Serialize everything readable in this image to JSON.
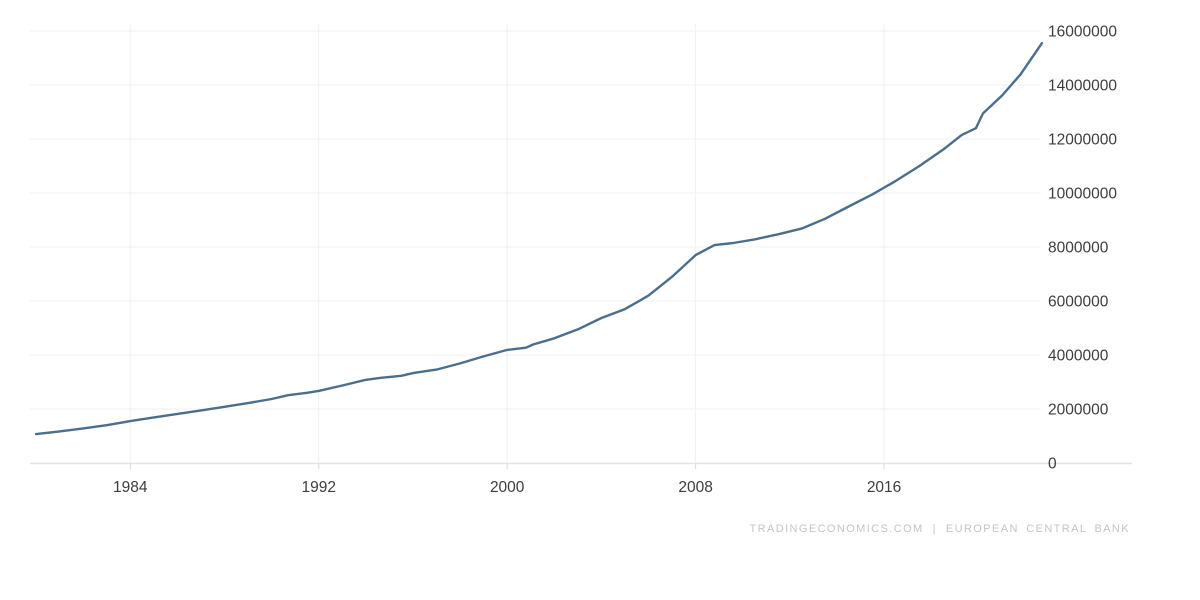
{
  "colors": {
    "background": "#ffffff",
    "line": "#4b6e8d",
    "grid": "#f1f1f1",
    "axis": "#e3e3e3",
    "tick": "#d9d9d9",
    "label": "#3d3d3d",
    "watermark": "#c5c4c4"
  },
  "watermark": {
    "left": "TRADINGECONOMICS.COM",
    "separator": "|",
    "right": "EUROPEAN CENTRAL BANK"
  },
  "chart_data": {
    "type": "line",
    "title": "",
    "xlabel": "",
    "ylabel": "",
    "grid": true,
    "legend_position": "none",
    "x_ticks": [
      1984,
      1992,
      2000,
      2008,
      2016
    ],
    "y_ticks": [
      0,
      2000000,
      4000000,
      6000000,
      8000000,
      10000000,
      12000000,
      14000000,
      16000000
    ],
    "x_range": [
      1980,
      2022.8
    ],
    "ylim": [
      0,
      16000000
    ],
    "y_tick_side": "right",
    "series": [
      {
        "name": "value",
        "x": [
          1980,
          1981,
          1982,
          1983,
          1984,
          1985,
          1986,
          1987,
          1988,
          1989,
          1990,
          1990.7,
          1991.5,
          1992,
          1993,
          1994,
          1994.6,
          1995.5,
          1996,
          1997,
          1998,
          1999,
          2000,
          2000.8,
          2001.1,
          2002,
          2003,
          2004,
          2005,
          2006,
          2007,
          2008,
          2008.8,
          2009.6,
          2010.5,
          2011.5,
          2012.5,
          2013.5,
          2014.5,
          2015.5,
          2016.5,
          2017.5,
          2018.5,
          2019.3,
          2019.9,
          2020.2,
          2021,
          2021.8,
          2022.7
        ],
        "values": [
          1070000,
          1170000,
          1280000,
          1400000,
          1550000,
          1690000,
          1820000,
          1950000,
          2080000,
          2220000,
          2370000,
          2510000,
          2600000,
          2670000,
          2870000,
          3080000,
          3150000,
          3230000,
          3330000,
          3460000,
          3690000,
          3950000,
          4190000,
          4270000,
          4390000,
          4620000,
          4950000,
          5370000,
          5700000,
          6200000,
          6900000,
          7700000,
          8070000,
          8150000,
          8280000,
          8470000,
          8680000,
          9050000,
          9500000,
          9950000,
          10450000,
          11000000,
          11600000,
          12150000,
          12400000,
          12950000,
          13600000,
          14400000,
          15550000
        ]
      }
    ]
  }
}
